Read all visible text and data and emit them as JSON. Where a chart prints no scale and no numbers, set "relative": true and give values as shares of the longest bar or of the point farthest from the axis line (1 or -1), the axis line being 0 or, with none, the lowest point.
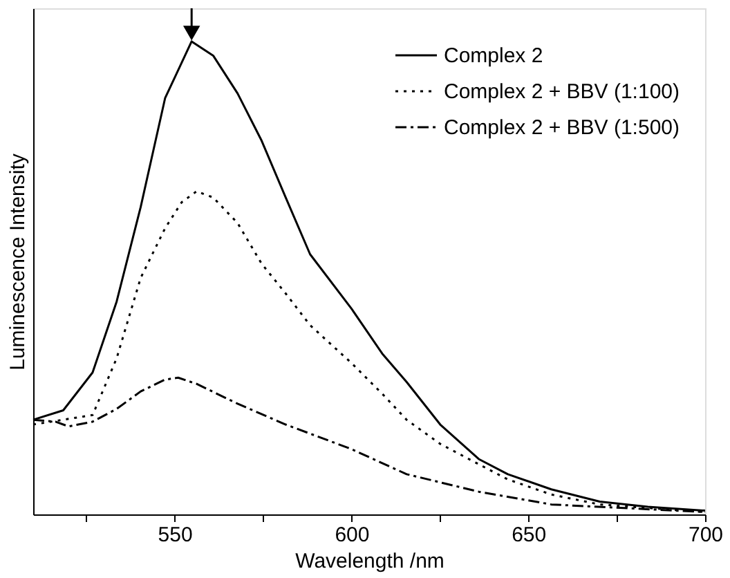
{
  "chart_data": {
    "type": "line",
    "relative": true,
    "xlabel": "Wavelength /nm",
    "ylabel": "Luminescence Intensity",
    "xlim": [
      510,
      700
    ],
    "xticks": [
      {
        "value": 525,
        "label": null
      },
      550,
      {
        "value": 575,
        "label": null
      },
      600,
      {
        "value": 625,
        "label": null
      },
      650,
      {
        "value": 675,
        "label": null
      },
      700
    ],
    "grid": false,
    "legend": "top right",
    "marker": "none",
    "series": [
      {
        "name": "Complex 2",
        "color": "#000000",
        "line_style": "solid",
        "x": [
          510,
          518.5,
          526.8,
          533.6,
          540.4,
          547.3,
          554.8,
          560.9,
          567.8,
          574.6,
          581.4,
          588.3,
          600,
          608.7,
          615.6,
          625.1,
          636,
          644.2,
          656.5,
          670.2,
          683.8,
          700
        ],
        "values": [
          0.2,
          0.22,
          0.3,
          0.45,
          0.65,
          0.88,
          1.0,
          0.97,
          0.89,
          0.79,
          0.67,
          0.55,
          0.435,
          0.34,
          0.28,
          0.19,
          0.117,
          0.085,
          0.053,
          0.027,
          0.016,
          0.008
        ]
      },
      {
        "name": "Complex 2 + BBV (1:100)",
        "color": "#000000",
        "line_style": "dotted",
        "x": [
          510,
          526.8,
          533.6,
          540.4,
          547.3,
          552,
          556.2,
          560.9,
          567.8,
          574.6,
          581.4,
          588.3,
          600,
          608.7,
          615.6,
          625.1,
          636,
          644.2,
          656.5,
          670.2,
          700
        ],
        "values": [
          0.19,
          0.21,
          0.33,
          0.5,
          0.605,
          0.66,
          0.683,
          0.67,
          0.616,
          0.53,
          0.467,
          0.4,
          0.32,
          0.255,
          0.2,
          0.149,
          0.106,
          0.074,
          0.042,
          0.021,
          0.005
        ]
      },
      {
        "name": "Complex 2 + BBV (1:500)",
        "color": "#000000",
        "line_style": "dashed",
        "x": [
          510,
          516.3,
          520,
          526.8,
          533.6,
          540.4,
          547.3,
          551,
          556.2,
          567.8,
          581.4,
          600,
          615.6,
          636,
          656.5,
          700
        ],
        "values": [
          0.2,
          0.196,
          0.186,
          0.196,
          0.223,
          0.26,
          0.285,
          0.289,
          0.276,
          0.234,
          0.19,
          0.138,
          0.085,
          0.048,
          0.021,
          0.005
        ]
      }
    ]
  }
}
